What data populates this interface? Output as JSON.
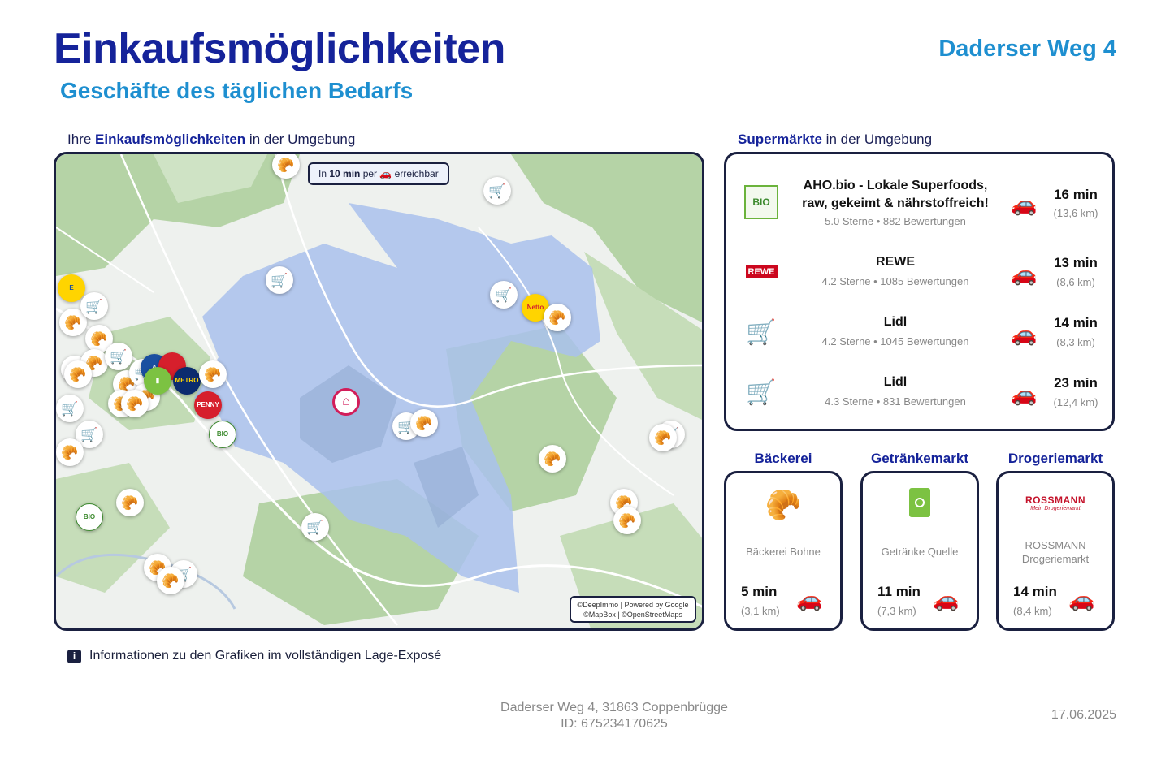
{
  "header": {
    "title": "Einkaufsmöglichkeiten",
    "subtitle": "Geschäfte des täglichen Bedarfs",
    "address": "Daderser Weg 4"
  },
  "map_section": {
    "heading_prefix": "Ihre ",
    "heading_bold": "Einkaufsmöglichkeiten",
    "heading_suffix": " in der Umgebung",
    "reach_prefix": "In ",
    "reach_bold": "10 min",
    "reach_middle": " per ",
    "reach_suffix": " erreichbar",
    "attribution_line1": "©DeepImmo | Powered by Google",
    "attribution_line2": "©MapBox | ©OpenStreetMaps"
  },
  "info_text": "Informationen zu den Grafiken im vollständigen Lage-Exposé",
  "supermarkets": {
    "heading_bold": "Supermärkte",
    "heading_suffix": " in der Umgebung",
    "items": [
      {
        "name": "AHO.bio - Lokale Superfoods, raw, gekeimt & nährstoffreich!",
        "rating": "5.0 Sterne • 882 Bewertungen",
        "time": "16 min",
        "distance": "(13,6 km)",
        "logo": "bio-markt-logo"
      },
      {
        "name": "REWE",
        "rating": "4.2 Sterne • 1085 Bewertungen",
        "time": "13 min",
        "distance": "(8,6 km)",
        "logo": "rewe-logo"
      },
      {
        "name": "Lidl",
        "rating": "4.2 Sterne • 1045 Bewertungen",
        "time": "14 min",
        "distance": "(8,3 km)",
        "logo": "cart-icon"
      },
      {
        "name": "Lidl",
        "rating": "4.3 Sterne • 831 Bewertungen",
        "time": "23 min",
        "distance": "(12,4 km)",
        "logo": "cart-icon"
      }
    ]
  },
  "categories": [
    {
      "title": "Bäckerei",
      "name": "Bäckerei Bohne",
      "time": "5 min",
      "distance": "(3,1 km)",
      "icon": "croissant-icon"
    },
    {
      "title": "Getränkemarkt",
      "name": "Getränke Quelle",
      "time": "11 min",
      "distance": "(7,3 km)",
      "icon": "juice-box-icon"
    },
    {
      "title": "Drogeriemarkt",
      "name": "ROSSMANN Drogeriemarkt",
      "time": "14 min",
      "distance": "(8,4 km)",
      "icon": "rossmann-logo",
      "logo_text": "ROSSMANN",
      "logo_tagline": "Mein Drogeriemarkt"
    }
  ],
  "footer": {
    "address": "Daderser Weg 4, 31863 Coppenbrügge",
    "id": "ID: 675234170625",
    "date": "17.06.2025"
  },
  "colors": {
    "title": "#15239a",
    "accent": "#1e8fd0",
    "border": "#1a2040",
    "car": "#d61f2c",
    "reach_area": "#a9c1ec",
    "forest": "#b5d3a6",
    "home_pin": "#d21d5a"
  }
}
